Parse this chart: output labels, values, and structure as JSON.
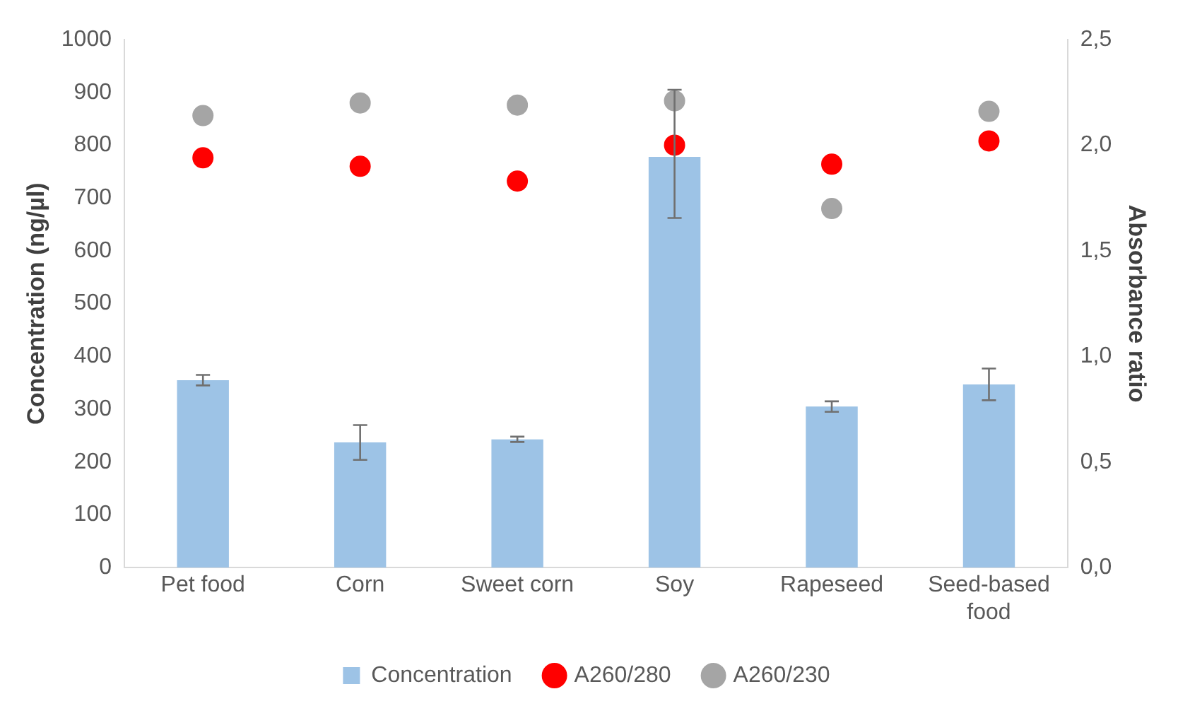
{
  "chart_data": {
    "type": "bar",
    "ylabel": "Concentration (ng/µl)",
    "y2label": "Absorbance ratio",
    "categories": [
      "Pet food",
      "Corn",
      "Sweet corn",
      "Soy",
      "Rapeseed",
      "Seed-based food"
    ],
    "series": [
      {
        "name": "Concentration",
        "color": "#9dc3e6",
        "values": [
          355,
          237,
          243,
          778,
          305,
          347
        ],
        "errors": [
          10,
          33,
          5,
          [
            662,
            905
          ],
          10,
          30
        ]
      },
      {
        "name": "A260/280",
        "type": "scatter",
        "color": "#ff0000",
        "axis": "y2",
        "values": [
          1.94,
          1.9,
          1.83,
          2.0,
          1.91,
          2.02
        ]
      },
      {
        "name": "A260/230",
        "type": "scatter",
        "color": "#a5a5a5",
        "axis": "y2",
        "values": [
          2.14,
          2.2,
          2.19,
          2.21,
          1.7,
          2.16
        ]
      }
    ],
    "ylim": [
      0,
      1000
    ],
    "yticks": [
      0,
      100,
      200,
      300,
      400,
      500,
      600,
      700,
      800,
      900,
      1000
    ],
    "y2lim": [
      0,
      2.5
    ],
    "y2ticks": [
      {
        "value": 0,
        "label": "0,0"
      },
      {
        "value": 0.5,
        "label": "0,5"
      },
      {
        "value": 1,
        "label": "1,0"
      },
      {
        "value": 1.5,
        "label": "1,5"
      },
      {
        "value": 2,
        "label": "2,0"
      },
      {
        "value": 2.5,
        "label": "2,5"
      }
    ],
    "grid": false,
    "legend": "bottom",
    "marker": "circle"
  }
}
